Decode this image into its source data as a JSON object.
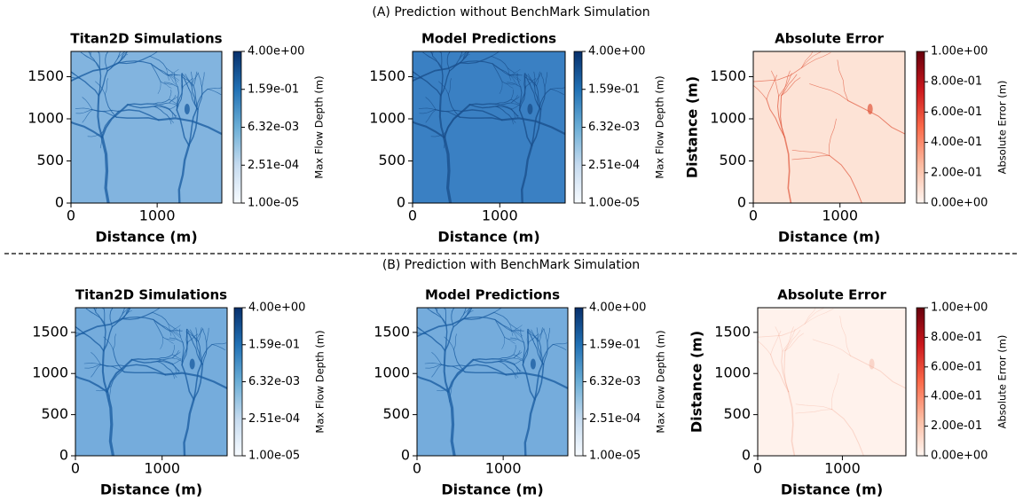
{
  "sections": [
    {
      "title": "(A) Prediction without BenchMark Simulation"
    },
    {
      "title": "(B) Prediction with BenchMark Simulation"
    }
  ],
  "chart_data": [
    {
      "type": "heatmap",
      "title": "Titan2D Simulations",
      "xlabel": "Distance (m)",
      "xlim": [
        0,
        1750
      ],
      "ylim": [
        0,
        1800
      ],
      "xticks": [
        0,
        1000
      ],
      "yticks": [
        0,
        500,
        1000,
        1500
      ],
      "cmap": "Blues",
      "colorbar": {
        "label": "Max Flow Depth (m)",
        "scale": "log",
        "lim": [
          1e-05,
          4
        ],
        "ticks": [
          {
            "value": 1e-05,
            "label": "1.00e-05"
          },
          {
            "value": 0.000251,
            "label": "2.51e-04"
          },
          {
            "value": 0.00632,
            "label": "6.32e-03"
          },
          {
            "value": 0.159,
            "label": "1.59e-01"
          },
          {
            "value": 4,
            "label": "4.00e+00"
          }
        ]
      }
    },
    {
      "type": "heatmap",
      "title": "Model Predictions",
      "xlabel": "Distance (m)",
      "xlim": [
        0,
        1750
      ],
      "ylim": [
        0,
        1800
      ],
      "xticks": [
        0,
        1000
      ],
      "yticks": [
        0,
        500,
        1000,
        1500
      ],
      "cmap": "Blues",
      "colorbar": {
        "label": "Max Flow Depth (m)",
        "scale": "log",
        "lim": [
          1e-05,
          4
        ],
        "ticks": [
          {
            "value": 1e-05,
            "label": "1.00e-05"
          },
          {
            "value": 0.000251,
            "label": "2.51e-04"
          },
          {
            "value": 0.00632,
            "label": "6.32e-03"
          },
          {
            "value": 0.159,
            "label": "1.59e-01"
          },
          {
            "value": 4,
            "label": "4.00e+00"
          }
        ]
      }
    },
    {
      "type": "heatmap",
      "title": "Absolute Error",
      "xlabel": "Distance (m)",
      "ylabel": "Distance (m)",
      "xlim": [
        0,
        1750
      ],
      "ylim": [
        0,
        1800
      ],
      "xticks": [
        0,
        1000
      ],
      "yticks": [
        0,
        500,
        1000,
        1500
      ],
      "cmap": "Reds",
      "colorbar": {
        "label": "Absolute Error (m)",
        "scale": "linear",
        "lim": [
          0,
          1
        ],
        "ticks": [
          {
            "value": 0,
            "label": "0.00e+00"
          },
          {
            "value": 0.2,
            "label": "2.00e-01"
          },
          {
            "value": 0.4,
            "label": "4.00e-01"
          },
          {
            "value": 0.6,
            "label": "6.00e-01"
          },
          {
            "value": 0.8,
            "label": "8.00e-01"
          },
          {
            "value": 1,
            "label": "1.00e+00"
          }
        ]
      }
    },
    {
      "type": "heatmap",
      "title": "Titan2D Simulations",
      "xlabel": "Distance (m)",
      "xlim": [
        0,
        1750
      ],
      "ylim": [
        0,
        1800
      ],
      "xticks": [
        0,
        1000
      ],
      "yticks": [
        0,
        500,
        1000,
        1500
      ],
      "cmap": "Blues",
      "colorbar": {
        "label": "Max Flow Depth (m)",
        "scale": "log",
        "lim": [
          1e-05,
          4
        ],
        "ticks": [
          {
            "value": 1e-05,
            "label": "1.00e-05"
          },
          {
            "value": 0.000251,
            "label": "2.51e-04"
          },
          {
            "value": 0.00632,
            "label": "6.32e-03"
          },
          {
            "value": 0.159,
            "label": "1.59e-01"
          },
          {
            "value": 4,
            "label": "4.00e+00"
          }
        ]
      }
    },
    {
      "type": "heatmap",
      "title": "Model Predictions",
      "xlabel": "Distance (m)",
      "xlim": [
        0,
        1750
      ],
      "ylim": [
        0,
        1800
      ],
      "xticks": [
        0,
        1000
      ],
      "yticks": [
        0,
        500,
        1000,
        1500
      ],
      "cmap": "Blues",
      "colorbar": {
        "label": "Max Flow Depth (m)",
        "scale": "log",
        "lim": [
          1e-05,
          4
        ],
        "ticks": [
          {
            "value": 1e-05,
            "label": "1.00e-05"
          },
          {
            "value": 0.000251,
            "label": "2.51e-04"
          },
          {
            "value": 0.00632,
            "label": "6.32e-03"
          },
          {
            "value": 0.159,
            "label": "1.59e-01"
          },
          {
            "value": 4,
            "label": "4.00e+00"
          }
        ]
      }
    },
    {
      "type": "heatmap",
      "title": "Absolute Error",
      "xlabel": "Distance (m)",
      "ylabel": "Distance (m)",
      "xlim": [
        0,
        1750
      ],
      "ylim": [
        0,
        1800
      ],
      "xticks": [
        0,
        1000
      ],
      "yticks": [
        0,
        500,
        1000,
        1500
      ],
      "cmap": "Reds",
      "colorbar": {
        "label": "Absolute Error (m)",
        "scale": "linear",
        "lim": [
          0,
          1
        ],
        "ticks": [
          {
            "value": 0,
            "label": "0.00e+00"
          },
          {
            "value": 0.2,
            "label": "2.00e-01"
          },
          {
            "value": 0.4,
            "label": "4.00e-01"
          },
          {
            "value": 0.6,
            "label": "6.00e-01"
          },
          {
            "value": 0.8,
            "label": "8.00e-01"
          },
          {
            "value": 1,
            "label": "1.00e+00"
          }
        ]
      }
    }
  ]
}
